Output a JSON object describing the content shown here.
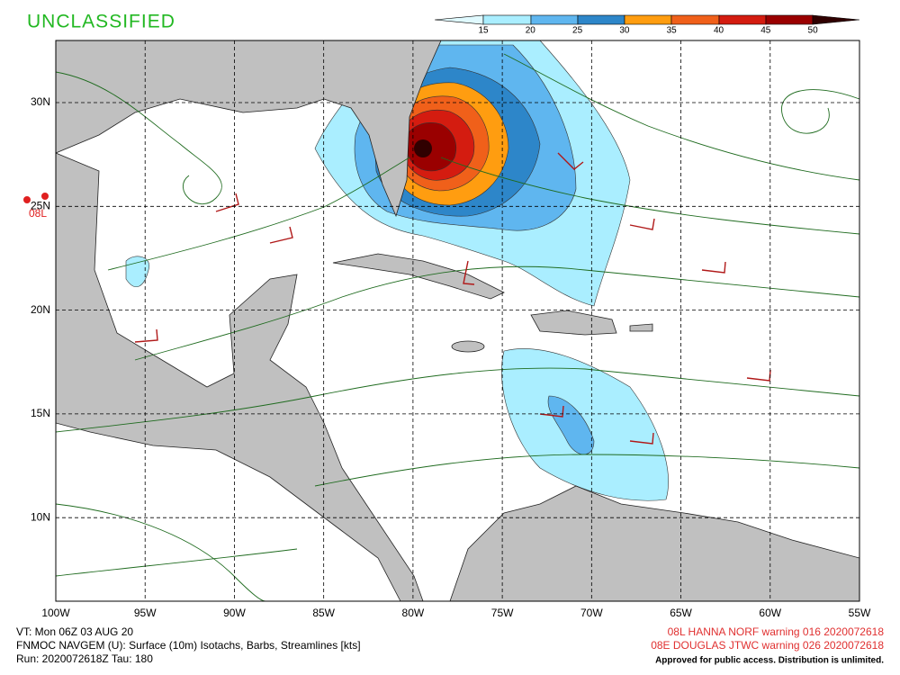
{
  "header": {
    "classification": "UNCLASSIFIED"
  },
  "colorbar": {
    "labels": [
      15,
      20,
      25,
      30,
      35,
      40,
      45,
      50
    ]
  },
  "map": {
    "lat_labels": [
      "30N",
      "25N",
      "20N",
      "15N",
      "10N"
    ],
    "lon_labels": [
      "100W",
      "95W",
      "90W",
      "85W",
      "80W",
      "75W",
      "70W",
      "65W",
      "60W",
      "55W"
    ],
    "storm_label": "08L"
  },
  "footer": {
    "left": [
      "VT: Mon 06Z 03 AUG 20",
      "FNMOC NAVGEM (U): Surface (10m) Isotachs, Barbs, Streamlines [kts]",
      "Run: 2020072618Z Tau: 180"
    ],
    "right": [
      "08L HANNA NORF warning 016 2020072618",
      "08E DOUGLAS JTWC warning 026 2020072618"
    ],
    "approval": "Approved for public access. Distribution is unlimited."
  }
}
